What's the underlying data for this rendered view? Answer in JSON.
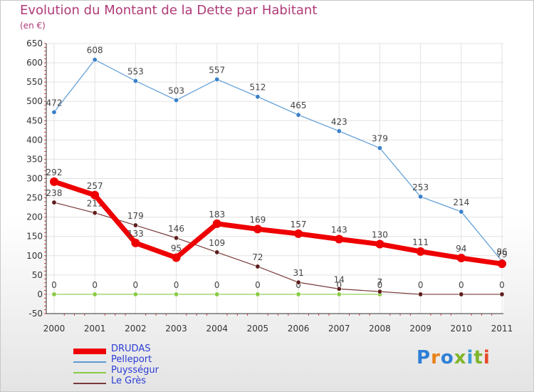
{
  "title": "Evolution du Montant de la Dette par Habitant",
  "subtitle": "(en €)",
  "logo": {
    "text": "Proxiti",
    "colors": [
      "#2f7fd6",
      "#e8821a",
      "#2f7fd6",
      "#7fb52a",
      "#3a9ad9",
      "#7fb52a",
      "#e84a2a"
    ]
  },
  "chart_data": {
    "type": "line",
    "title": "Evolution du Montant de la Dette par Habitant",
    "ylabel": "(en €)",
    "xlabel": "",
    "ylim": [
      -50,
      650
    ],
    "yticks": [
      -50,
      0,
      50,
      100,
      150,
      200,
      250,
      300,
      350,
      400,
      450,
      500,
      550,
      600,
      650
    ],
    "grid": true,
    "legend_position": "bottom-left",
    "categories": [
      "2000",
      "2001",
      "2002",
      "2003",
      "2004",
      "2005",
      "2006",
      "2007",
      "2008",
      "2009",
      "2010",
      "2011"
    ],
    "series": [
      {
        "name": "Pelleport",
        "color": "#5b9bd5",
        "values": [
          472,
          608,
          553,
          503,
          557,
          512,
          465,
          423,
          379,
          253,
          214,
          86
        ]
      },
      {
        "name": "Puysségur",
        "color": "#88cc44",
        "values": [
          0,
          0,
          0,
          0,
          0,
          0,
          0,
          0,
          0,
          null,
          null,
          null
        ]
      },
      {
        "name": "Le Grès",
        "color": "#7a3a3a",
        "values": [
          238,
          211,
          179,
          146,
          109,
          72,
          31,
          14,
          7,
          0,
          0,
          0
        ]
      },
      {
        "name": "DRUDAS",
        "color": "#ee0000",
        "values": [
          292,
          257,
          133,
          95,
          183,
          169,
          157,
          143,
          130,
          111,
          94,
          79
        ]
      }
    ],
    "legend": [
      {
        "name": "DRUDAS",
        "color": "#ee0000"
      },
      {
        "name": "Pelleport",
        "color": "#5b9bd5"
      },
      {
        "name": "Puysségur",
        "color": "#88cc44"
      },
      {
        "name": "Le Grès",
        "color": "#7a3a3a"
      }
    ]
  }
}
